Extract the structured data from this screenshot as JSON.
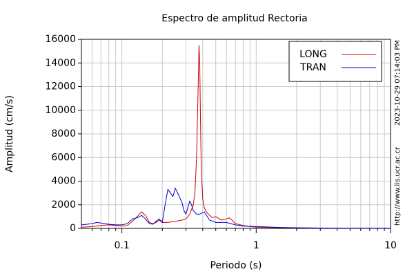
{
  "chart_data": {
    "type": "line",
    "title": "Espectro de amplitud Rectoria",
    "xlabel": "Periodo (s)",
    "ylabel": "Amplitud (cm/s)",
    "side_texts": [
      "2023-10-29 07:14:03 PM",
      "http://www.lis.ucr.ac.cr"
    ],
    "log_x": true,
    "grid": true,
    "legend": "upper right",
    "xlim": [
      0.05,
      10
    ],
    "xticks": [
      0.1,
      1,
      10
    ],
    "ylim": [
      0,
      16000
    ],
    "yticks": [
      0,
      2000,
      4000,
      6000,
      8000,
      10000,
      12000,
      14000,
      16000
    ],
    "series": [
      {
        "name": "LONG",
        "color": "#cc0000",
        "x": [
          0.05,
          0.06,
          0.07,
          0.08,
          0.09,
          0.1,
          0.11,
          0.12,
          0.13,
          0.14,
          0.15,
          0.16,
          0.17,
          0.18,
          0.19,
          0.2,
          0.22,
          0.25,
          0.28,
          0.3,
          0.32,
          0.34,
          0.35,
          0.36,
          0.37,
          0.375,
          0.38,
          0.385,
          0.39,
          0.4,
          0.41,
          0.42,
          0.44,
          0.47,
          0.5,
          0.55,
          0.6,
          0.63,
          0.66,
          0.7,
          0.8,
          0.9,
          1,
          1.2,
          1.5,
          2,
          3,
          5,
          7,
          10
        ],
        "values": [
          100,
          150,
          250,
          300,
          250,
          200,
          250,
          600,
          1000,
          1400,
          1100,
          500,
          400,
          500,
          700,
          500,
          500,
          600,
          700,
          800,
          1200,
          2000,
          3000,
          6000,
          12000,
          15500,
          14000,
          9000,
          5000,
          2500,
          1800,
          1500,
          1200,
          900,
          1000,
          700,
          800,
          900,
          700,
          400,
          250,
          150,
          100,
          80,
          60,
          40,
          30,
          20,
          15,
          10
        ]
      },
      {
        "name": "TRAN",
        "color": "#0000cc",
        "x": [
          0.05,
          0.055,
          0.06,
          0.065,
          0.07,
          0.08,
          0.09,
          0.1,
          0.11,
          0.12,
          0.13,
          0.14,
          0.15,
          0.16,
          0.17,
          0.18,
          0.19,
          0.2,
          0.21,
          0.22,
          0.23,
          0.24,
          0.25,
          0.26,
          0.27,
          0.28,
          0.29,
          0.3,
          0.31,
          0.32,
          0.33,
          0.34,
          0.36,
          0.38,
          0.41,
          0.45,
          0.5,
          0.6,
          0.7,
          0.8,
          1,
          1.2,
          1.5,
          2,
          3,
          5,
          7,
          10
        ],
        "values": [
          300,
          350,
          400,
          500,
          450,
          350,
          300,
          300,
          400,
          800,
          900,
          1100,
          800,
          400,
          350,
          600,
          800,
          500,
          2000,
          3300,
          3000,
          2700,
          3400,
          3000,
          2600,
          2200,
          1500,
          1200,
          1800,
          2300,
          2000,
          1500,
          1200,
          1200,
          1400,
          700,
          500,
          500,
          300,
          200,
          150,
          120,
          80,
          50,
          30,
          20,
          15,
          10
        ]
      }
    ]
  }
}
